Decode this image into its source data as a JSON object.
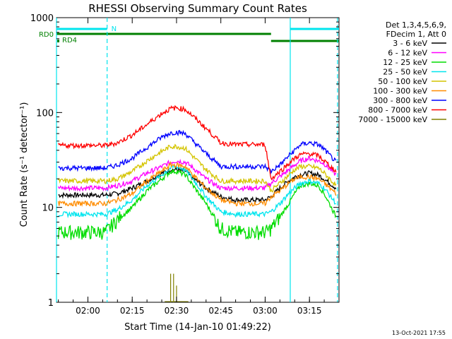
{
  "chart_data": {
    "type": "line",
    "title": "RHESSI Observing Summary Count Rates",
    "xlabel": "Start Time (14-Jan-10 01:49:22)",
    "ylabel": "Count Rate (s⁻¹ detector⁻¹)",
    "yscale": "log",
    "ylim": [
      1,
      1000
    ],
    "xlim": [
      "01:49:22",
      "03:25:00"
    ],
    "x_ticks": [
      "02:00",
      "02:15",
      "02:30",
      "02:45",
      "03:00",
      "03:15"
    ],
    "y_ticks": [
      "1",
      "10",
      "100",
      "1000"
    ],
    "grid": false,
    "legend_position": "right",
    "legend_header": [
      "Det 1,3,4,5,6,9,",
      "FDecim 1, Att 0"
    ],
    "timestamp": "13-Oct-2021 17:55",
    "flags": [
      {
        "label": "N",
        "color": "#00e5ee",
        "segments": [
          [
            "01:49:22",
            "02:06:30"
          ],
          [
            "03:08:30",
            "03:25:00"
          ]
        ]
      },
      {
        "label": "RD0",
        "color": "#008000",
        "segments": [
          [
            "01:49:22",
            "03:02:00"
          ]
        ]
      },
      {
        "label": "RD4",
        "color": "#008000",
        "segments": [
          [
            "03:02:00",
            "03:25:00"
          ]
        ]
      }
    ],
    "markers": {
      "solid_vertical": [
        "01:49:22",
        "03:08:30"
      ],
      "dashed_vertical": [
        "02:06:30",
        "03:24:30"
      ]
    },
    "x_times": [
      "01:50",
      "02:00",
      "02:06",
      "02:10",
      "02:15",
      "02:20",
      "02:25",
      "02:28",
      "02:30",
      "02:33",
      "02:35",
      "02:40",
      "02:45",
      "02:50",
      "03:00",
      "03:02",
      "03:05",
      "03:08",
      "03:10",
      "03:12",
      "03:15",
      "03:18",
      "03:20",
      "03:24"
    ],
    "series": [
      {
        "name": "3 - 6 keV",
        "color": "#000000",
        "values": [
          13.5,
          13.5,
          13.5,
          14,
          16,
          19,
          23,
          25,
          25,
          24,
          21,
          16,
          13,
          12,
          12,
          13,
          16,
          19,
          21,
          22,
          23,
          22,
          20,
          16
        ]
      },
      {
        "name": "6 - 12 keV",
        "color": "#ff00ff",
        "values": [
          16,
          16,
          16,
          17,
          19,
          23,
          27,
          30,
          31,
          30,
          27,
          20,
          16,
          16,
          16,
          18,
          21,
          25,
          28,
          31,
          33,
          31,
          29,
          22
        ]
      },
      {
        "name": "12 - 25 keV",
        "color": "#00dd00",
        "values": [
          5.5,
          5.5,
          5.5,
          7.5,
          10,
          15,
          20,
          24,
          24,
          22,
          18,
          11,
          6,
          5.5,
          5.5,
          6,
          8,
          11,
          14,
          17,
          18,
          17,
          14,
          8
        ]
      },
      {
        "name": "25 - 50 keV",
        "color": "#00e5ee",
        "values": [
          8.5,
          8.5,
          8.5,
          9.5,
          12,
          17,
          22,
          26,
          27,
          25,
          21,
          13,
          9,
          8.5,
          8.5,
          9,
          11,
          14,
          16,
          18,
          19,
          18,
          16,
          11
        ]
      },
      {
        "name": "50 - 100 keV",
        "color": "#d4c400",
        "values": [
          19,
          19,
          19,
          20,
          24,
          31,
          39,
          44,
          44,
          42,
          36,
          25,
          19,
          19,
          19,
          15,
          18,
          22,
          25,
          27,
          27,
          26,
          23,
          17
        ]
      },
      {
        "name": "100 - 300 keV",
        "color": "#ff8c00",
        "values": [
          11,
          11,
          11,
          12,
          14,
          19,
          24,
          28,
          28,
          27,
          23,
          16,
          12,
          11,
          11,
          13,
          15,
          18,
          20,
          21,
          21,
          20,
          18,
          14
        ]
      },
      {
        "name": "300 - 800 keV",
        "color": "#0000ff",
        "values": [
          26,
          26,
          26,
          28,
          33,
          43,
          55,
          61,
          62,
          60,
          52,
          37,
          27,
          27,
          27,
          24,
          28,
          35,
          40,
          46,
          48,
          46,
          41,
          30
        ]
      },
      {
        "name": "800 - 7000 keV",
        "color": "#ff0000",
        "values": [
          45,
          45,
          45,
          48,
          58,
          75,
          98,
          110,
          112,
          108,
          95,
          68,
          48,
          46,
          46,
          20,
          24,
          29,
          33,
          36,
          37,
          35,
          31,
          24
        ]
      },
      {
        "name": "7000 - 15000 keV",
        "color": "#808000",
        "values": [
          1,
          1,
          1,
          1,
          1,
          1,
          1,
          1,
          1,
          1,
          1,
          1,
          1,
          1,
          1,
          1,
          1,
          1,
          1,
          1,
          1,
          1,
          1,
          1
        ]
      }
    ],
    "spikes_7000": [
      {
        "time": "02:28",
        "value": 2.0
      },
      {
        "time": "02:29",
        "value": 2.0
      },
      {
        "time": "02:30",
        "value": 1.5
      }
    ]
  }
}
